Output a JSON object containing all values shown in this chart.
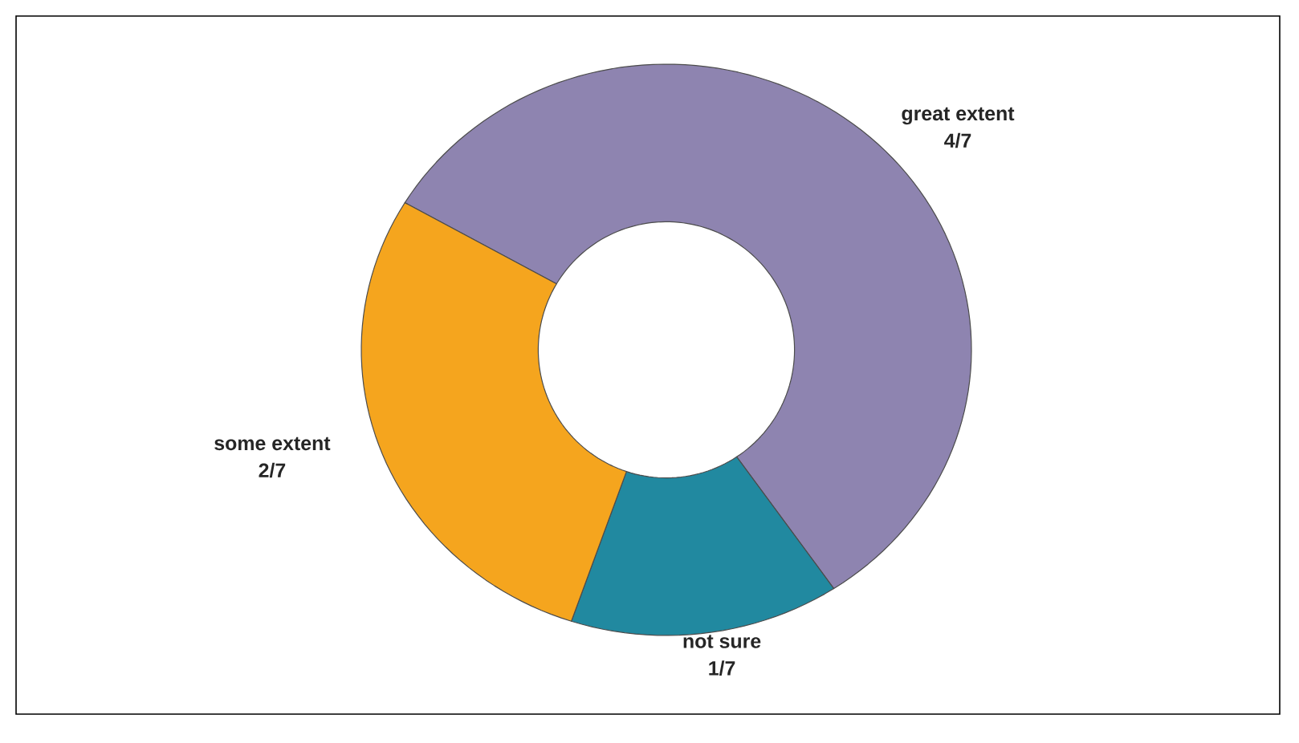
{
  "chart_data": {
    "type": "donut",
    "categories": [
      "great extent",
      "not sure",
      "some extent"
    ],
    "values": [
      57.14,
      14.29,
      28.57
    ],
    "value_labels": [
      "4/7",
      "1/7",
      "2/7"
    ],
    "colors": [
      "#8e84b0",
      "#2189a0",
      "#f5a51e"
    ]
  }
}
